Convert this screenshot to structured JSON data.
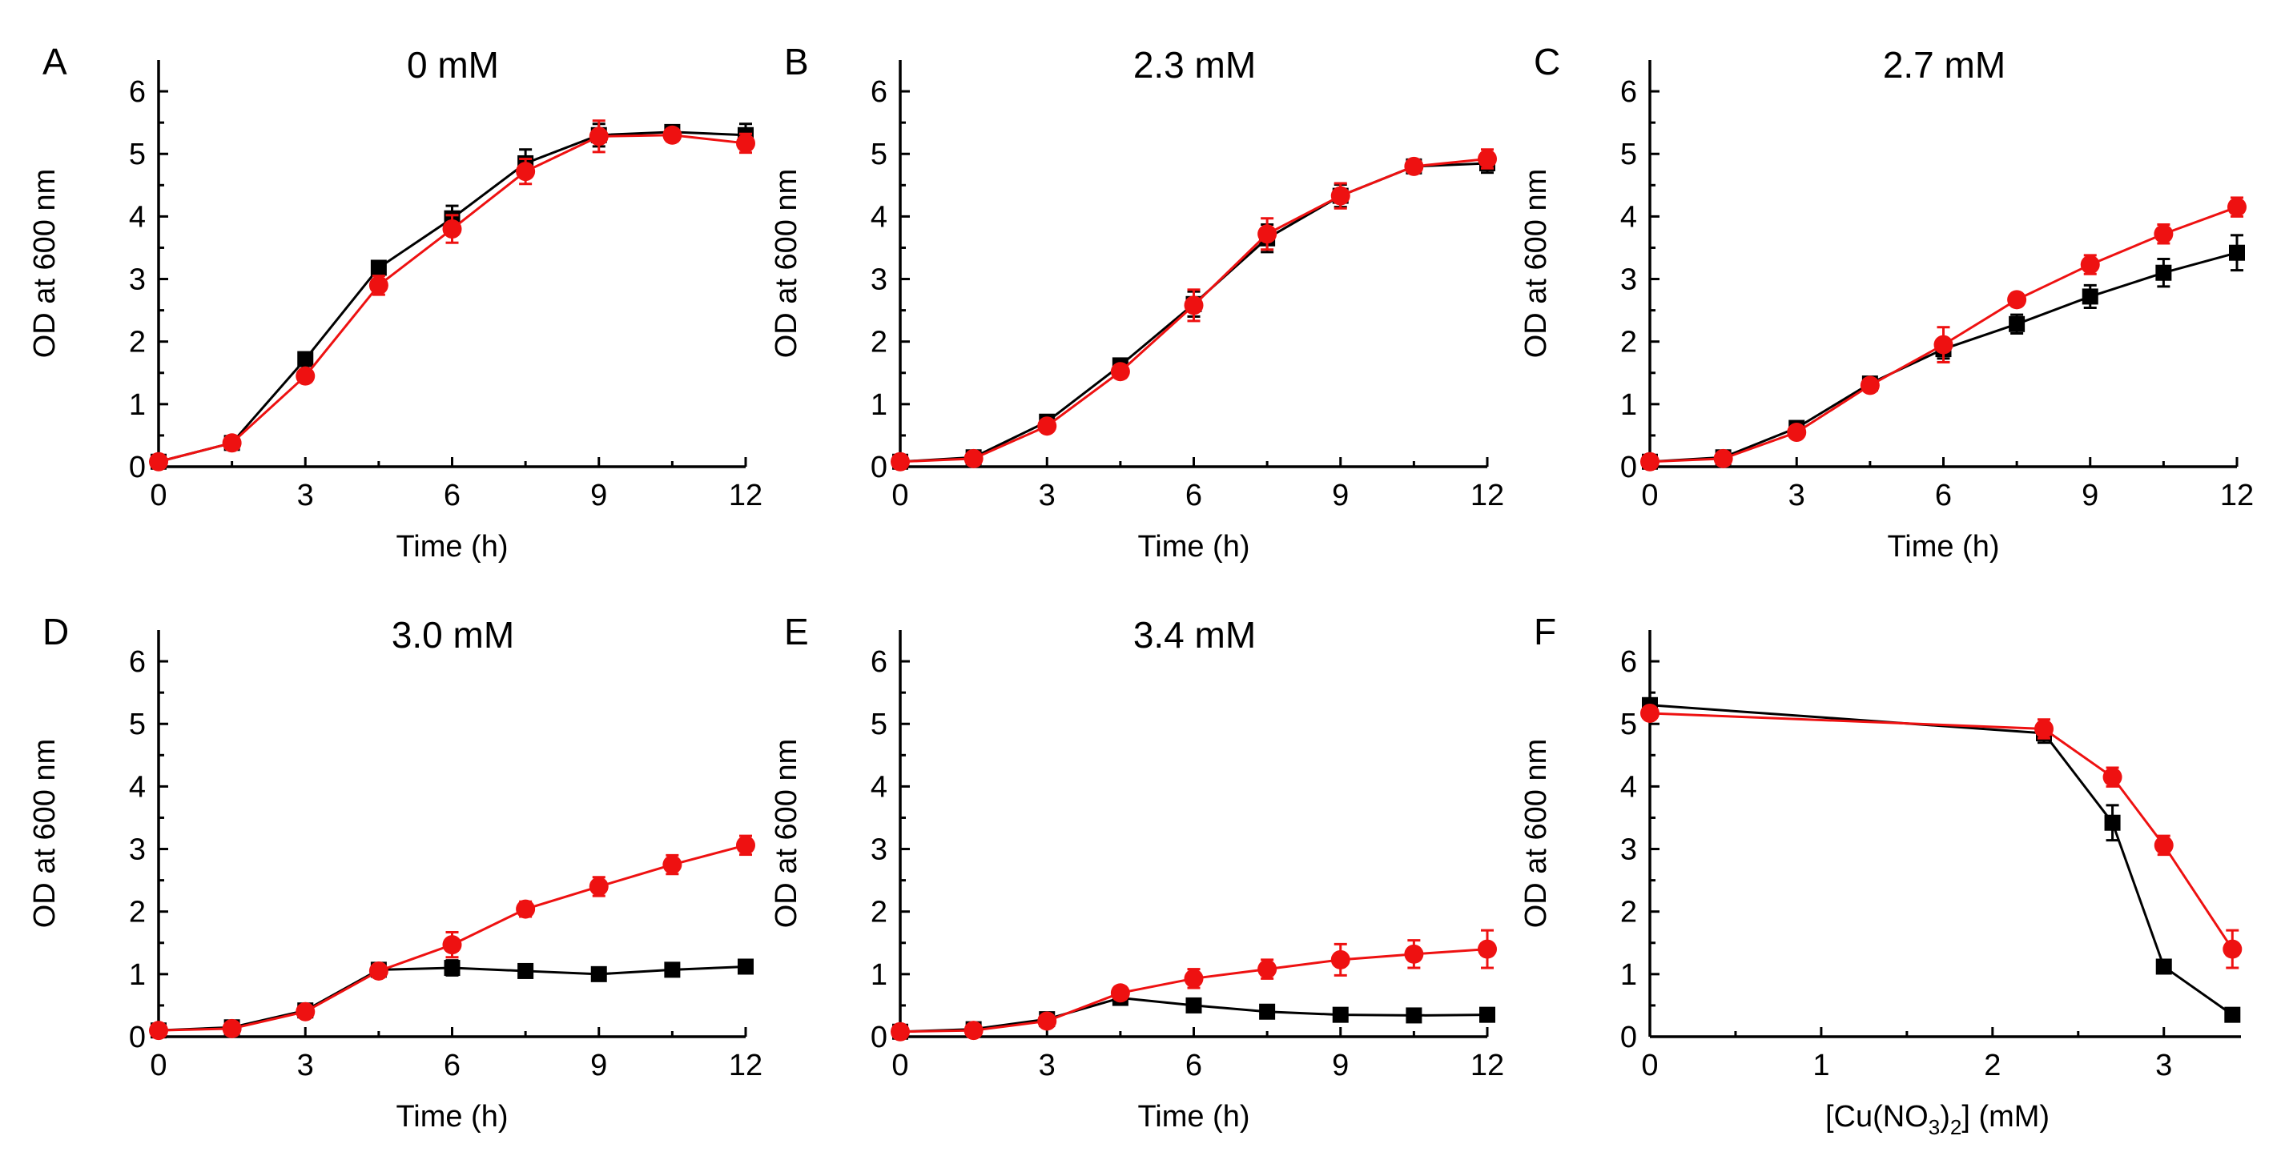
{
  "chart_data": [
    {
      "type": "line",
      "panel": "A",
      "title": "0 mM",
      "xlabel": "Time (h)",
      "ylabel": "OD at 600 nm",
      "xlim": [
        0,
        12
      ],
      "ylim": [
        0,
        6.5
      ],
      "xticks": [
        0,
        3,
        6,
        9,
        12
      ],
      "yticks": [
        0,
        1,
        2,
        3,
        4,
        5,
        6
      ],
      "x": [
        0,
        1.5,
        3,
        4.5,
        6,
        7.5,
        9,
        10.5,
        12
      ],
      "series": [
        {
          "name": "black-squares",
          "color": "#000000",
          "marker": "square",
          "values": [
            0.08,
            0.38,
            1.72,
            3.18,
            3.97,
            4.85,
            5.3,
            5.35,
            5.3
          ],
          "errors": [
            0.02,
            0.04,
            0.06,
            0.1,
            0.2,
            0.22,
            0.18,
            0.08,
            0.18
          ]
        },
        {
          "name": "red-circles",
          "color": "#ee1111",
          "marker": "circle",
          "values": [
            0.08,
            0.38,
            1.45,
            2.9,
            3.8,
            4.72,
            5.28,
            5.3,
            5.17
          ],
          "errors": [
            0.02,
            0.04,
            0.1,
            0.15,
            0.22,
            0.2,
            0.25,
            0.1,
            0.15
          ]
        }
      ]
    },
    {
      "type": "line",
      "panel": "B",
      "title": "2.3 mM",
      "xlabel": "Time (h)",
      "ylabel": "OD at 600 nm",
      "xlim": [
        0,
        12
      ],
      "ylim": [
        0,
        6.5
      ],
      "xticks": [
        0,
        3,
        6,
        9,
        12
      ],
      "yticks": [
        0,
        1,
        2,
        3,
        4,
        5,
        6
      ],
      "x": [
        0,
        1.5,
        3,
        4.5,
        6,
        7.5,
        9,
        10.5,
        12
      ],
      "series": [
        {
          "name": "black-squares",
          "color": "#000000",
          "marker": "square",
          "values": [
            0.08,
            0.15,
            0.72,
            1.62,
            2.6,
            3.65,
            4.33,
            4.8,
            4.85
          ],
          "errors": [
            0.02,
            0.03,
            0.05,
            0.08,
            0.2,
            0.22,
            0.18,
            0.08,
            0.15
          ]
        },
        {
          "name": "red-circles",
          "color": "#ee1111",
          "marker": "circle",
          "values": [
            0.08,
            0.13,
            0.65,
            1.52,
            2.58,
            3.72,
            4.33,
            4.8,
            4.92
          ],
          "errors": [
            0.02,
            0.03,
            0.05,
            0.1,
            0.25,
            0.25,
            0.2,
            0.08,
            0.15
          ]
        }
      ]
    },
    {
      "type": "line",
      "panel": "C",
      "title": "2.7 mM",
      "xlabel": "Time (h)",
      "ylabel": "OD at 600 nm",
      "xlim": [
        0,
        12
      ],
      "ylim": [
        0,
        6.5
      ],
      "xticks": [
        0,
        3,
        6,
        9,
        12
      ],
      "yticks": [
        0,
        1,
        2,
        3,
        4,
        5,
        6
      ],
      "x": [
        0,
        1.5,
        3,
        4.5,
        6,
        7.5,
        9,
        10.5,
        12
      ],
      "series": [
        {
          "name": "black-squares",
          "color": "#000000",
          "marker": "square",
          "values": [
            0.08,
            0.15,
            0.62,
            1.33,
            1.88,
            2.28,
            2.72,
            3.1,
            3.42
          ],
          "errors": [
            0.02,
            0.03,
            0.05,
            0.08,
            0.15,
            0.15,
            0.18,
            0.22,
            0.28
          ]
        },
        {
          "name": "red-circles",
          "color": "#ee1111",
          "marker": "circle",
          "values": [
            0.08,
            0.13,
            0.55,
            1.3,
            1.95,
            2.67,
            3.23,
            3.72,
            4.15
          ],
          "errors": [
            0.02,
            0.03,
            0.05,
            0.1,
            0.28,
            0.08,
            0.15,
            0.15,
            0.15
          ]
        }
      ]
    },
    {
      "type": "line",
      "panel": "D",
      "title": "3.0 mM",
      "xlabel": "Time (h)",
      "ylabel": "OD at 600 nm",
      "xlim": [
        0,
        12
      ],
      "ylim": [
        0,
        6.5
      ],
      "xticks": [
        0,
        3,
        6,
        9,
        12
      ],
      "yticks": [
        0,
        1,
        2,
        3,
        4,
        5,
        6
      ],
      "x": [
        0,
        1.5,
        3,
        4.5,
        6,
        7.5,
        9,
        10.5,
        12
      ],
      "series": [
        {
          "name": "black-squares",
          "color": "#000000",
          "marker": "square",
          "values": [
            0.1,
            0.15,
            0.42,
            1.07,
            1.1,
            1.05,
            1.0,
            1.07,
            1.12
          ],
          "errors": [
            0.02,
            0.03,
            0.05,
            0.1,
            0.12,
            0.05,
            0.05,
            0.05,
            0.05
          ]
        },
        {
          "name": "red-circles",
          "color": "#ee1111",
          "marker": "circle",
          "values": [
            0.1,
            0.13,
            0.4,
            1.05,
            1.47,
            2.04,
            2.4,
            2.75,
            3.06
          ],
          "errors": [
            0.02,
            0.03,
            0.05,
            0.1,
            0.2,
            0.12,
            0.15,
            0.15,
            0.15
          ]
        }
      ]
    },
    {
      "type": "line",
      "panel": "E",
      "title": "3.4 mM",
      "xlabel": "Time (h)",
      "ylabel": "OD at 600 nm",
      "xlim": [
        0,
        12
      ],
      "ylim": [
        0,
        6.5
      ],
      "xticks": [
        0,
        3,
        6,
        9,
        12
      ],
      "yticks": [
        0,
        1,
        2,
        3,
        4,
        5,
        6
      ],
      "x": [
        0,
        1.5,
        3,
        4.5,
        6,
        7.5,
        9,
        10.5,
        12
      ],
      "series": [
        {
          "name": "black-squares",
          "color": "#000000",
          "marker": "square",
          "values": [
            0.08,
            0.12,
            0.28,
            0.62,
            0.5,
            0.4,
            0.35,
            0.34,
            0.35
          ],
          "errors": [
            0.02,
            0.03,
            0.05,
            0.05,
            0.05,
            0.05,
            0.05,
            0.05,
            0.05
          ]
        },
        {
          "name": "red-circles",
          "color": "#ee1111",
          "marker": "circle",
          "values": [
            0.08,
            0.1,
            0.25,
            0.7,
            0.93,
            1.08,
            1.23,
            1.32,
            1.4
          ],
          "errors": [
            0.02,
            0.03,
            0.05,
            0.1,
            0.15,
            0.15,
            0.25,
            0.22,
            0.3
          ]
        }
      ]
    },
    {
      "type": "line",
      "panel": "F",
      "title": "",
      "xlabel": "[Cu(NO3)2] (mM)",
      "xlabel_parts": {
        "pre": "[Cu(NO",
        "sub1": "3",
        "mid": ")",
        "sub2": "2",
        "post": "] (mM)"
      },
      "ylabel": "OD at 600 nm",
      "xlim": [
        0,
        3.45
      ],
      "ylim": [
        0,
        6.5
      ],
      "xticks": [
        0,
        1,
        2,
        3
      ],
      "yticks": [
        0,
        1,
        2,
        3,
        4,
        5,
        6
      ],
      "x": [
        0,
        2.3,
        2.7,
        3.0,
        3.4
      ],
      "series": [
        {
          "name": "black-squares",
          "color": "#000000",
          "marker": "square",
          "values": [
            5.3,
            4.85,
            3.42,
            1.12,
            0.35
          ],
          "errors": [
            0.0,
            0.15,
            0.28,
            0.05,
            0.05
          ]
        },
        {
          "name": "red-circles",
          "color": "#ee1111",
          "marker": "circle",
          "values": [
            5.17,
            4.92,
            4.15,
            3.06,
            1.4
          ],
          "errors": [
            0.0,
            0.15,
            0.15,
            0.15,
            0.3
          ]
        }
      ]
    }
  ]
}
